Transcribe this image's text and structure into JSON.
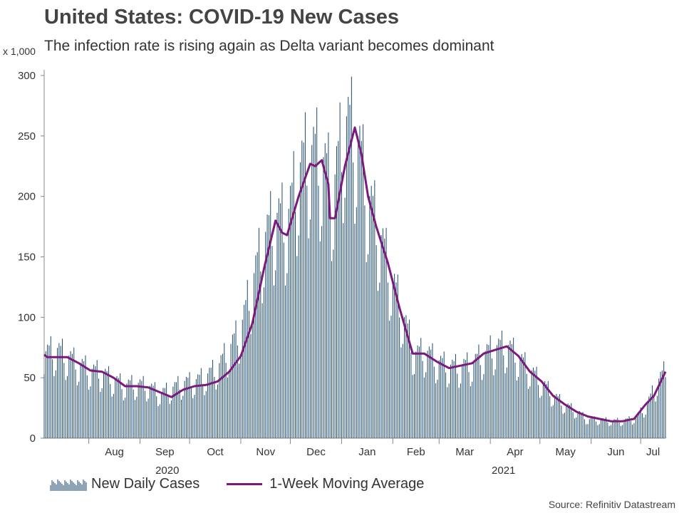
{
  "header": {
    "title": "United States: COVID-19 New Cases",
    "subtitle": "The infection rate is rising again as Delta variant becomes dominant",
    "unit": "x 1,000"
  },
  "footer": {
    "source": "Source: Refinitiv Datastream"
  },
  "colors": {
    "bars": "#1C4A6E",
    "line": "#7B1A7E",
    "axis": "#888888",
    "text": "#333333"
  },
  "chart_data": {
    "type": "bar",
    "title": "United States: COVID-19 New Cases",
    "subtitle": "The infection rate is rising again as Delta variant becomes dominant",
    "ylabel": "x 1,000",
    "ylim": [
      0,
      300
    ],
    "yticks": [
      0,
      50,
      100,
      150,
      200,
      250,
      300
    ],
    "grid": false,
    "legend_position": "bottom-left",
    "x_start": "2020-07-05",
    "x_end": "2021-07-16",
    "month_labels": [
      "Aug",
      "Sep",
      "Oct",
      "Nov",
      "Dec",
      "Jan",
      "Feb",
      "Mar",
      "Apr",
      "May",
      "Jun",
      "Jul"
    ],
    "year_labels": [
      "2020",
      "2021"
    ],
    "series": [
      {
        "name": "New Daily Cases",
        "kind": "bar",
        "points": [
          [
            "2020-07-05",
            68
          ],
          [
            "2020-07-12",
            72
          ],
          [
            "2020-07-19",
            66
          ],
          [
            "2020-07-26",
            60
          ],
          [
            "2020-08-02",
            55
          ],
          [
            "2020-08-09",
            53
          ],
          [
            "2020-08-16",
            47
          ],
          [
            "2020-08-23",
            43
          ],
          [
            "2020-08-30",
            44
          ],
          [
            "2020-09-06",
            42
          ],
          [
            "2020-09-13",
            36
          ],
          [
            "2020-09-20",
            40
          ],
          [
            "2020-09-27",
            45
          ],
          [
            "2020-10-04",
            46
          ],
          [
            "2020-10-11",
            50
          ],
          [
            "2020-10-18",
            57
          ],
          [
            "2020-10-25",
            72
          ],
          [
            "2020-11-01",
            88
          ],
          [
            "2020-11-08",
            125
          ],
          [
            "2020-11-15",
            160
          ],
          [
            "2020-11-22",
            178
          ],
          [
            "2020-11-29",
            175
          ],
          [
            "2020-12-06",
            215
          ],
          [
            "2020-12-13",
            232
          ],
          [
            "2020-12-20",
            225
          ],
          [
            "2020-12-27",
            200
          ],
          [
            "2021-01-03",
            255
          ],
          [
            "2021-01-10",
            245
          ],
          [
            "2021-01-17",
            195
          ],
          [
            "2021-01-24",
            165
          ],
          [
            "2021-01-31",
            130
          ],
          [
            "2021-02-07",
            100
          ],
          [
            "2021-02-14",
            68
          ],
          [
            "2021-02-21",
            70
          ],
          [
            "2021-02-28",
            62
          ],
          [
            "2021-03-07",
            58
          ],
          [
            "2021-03-14",
            58
          ],
          [
            "2021-03-21",
            60
          ],
          [
            "2021-03-28",
            68
          ],
          [
            "2021-04-04",
            73
          ],
          [
            "2021-04-11",
            75
          ],
          [
            "2021-04-18",
            65
          ],
          [
            "2021-04-25",
            55
          ],
          [
            "2021-05-02",
            45
          ],
          [
            "2021-05-09",
            35
          ],
          [
            "2021-05-16",
            27
          ],
          [
            "2021-05-23",
            22
          ],
          [
            "2021-05-30",
            15
          ],
          [
            "2021-06-06",
            15
          ],
          [
            "2021-06-13",
            14
          ],
          [
            "2021-06-20",
            14
          ],
          [
            "2021-06-27",
            16
          ],
          [
            "2021-07-04",
            25
          ],
          [
            "2021-07-11",
            45
          ],
          [
            "2021-07-16",
            55
          ]
        ]
      },
      {
        "name": "1-Week Moving Average",
        "kind": "line",
        "points": [
          [
            "2020-07-05",
            69
          ],
          [
            "2020-07-07",
            67
          ],
          [
            "2020-07-19",
            67
          ],
          [
            "2020-07-26",
            62
          ],
          [
            "2020-08-02",
            56
          ],
          [
            "2020-08-09",
            55
          ],
          [
            "2020-08-16",
            50
          ],
          [
            "2020-08-23",
            43
          ],
          [
            "2020-08-30",
            43
          ],
          [
            "2020-09-06",
            42
          ],
          [
            "2020-09-13",
            38
          ],
          [
            "2020-09-20",
            34
          ],
          [
            "2020-09-27",
            40
          ],
          [
            "2020-10-04",
            43
          ],
          [
            "2020-10-11",
            44
          ],
          [
            "2020-10-18",
            47
          ],
          [
            "2020-10-25",
            55
          ],
          [
            "2020-11-01",
            68
          ],
          [
            "2020-11-08",
            95
          ],
          [
            "2020-11-15",
            140
          ],
          [
            "2020-11-22",
            180
          ],
          [
            "2020-11-26",
            170
          ],
          [
            "2020-11-29",
            168
          ],
          [
            "2020-12-06",
            200
          ],
          [
            "2020-12-13",
            227
          ],
          [
            "2020-12-16",
            225
          ],
          [
            "2020-12-20",
            230
          ],
          [
            "2020-12-24",
            210
          ],
          [
            "2020-12-25",
            182
          ],
          [
            "2020-12-28",
            182
          ],
          [
            "2021-01-03",
            225
          ],
          [
            "2021-01-09",
            257
          ],
          [
            "2021-01-13",
            235
          ],
          [
            "2021-01-17",
            200
          ],
          [
            "2021-01-22",
            175
          ],
          [
            "2021-01-29",
            145
          ],
          [
            "2021-02-05",
            108
          ],
          [
            "2021-02-13",
            70
          ],
          [
            "2021-02-20",
            70
          ],
          [
            "2021-02-28",
            63
          ],
          [
            "2021-03-07",
            58
          ],
          [
            "2021-03-14",
            60
          ],
          [
            "2021-03-21",
            62
          ],
          [
            "2021-03-28",
            70
          ],
          [
            "2021-04-04",
            73
          ],
          [
            "2021-04-11",
            76
          ],
          [
            "2021-04-18",
            68
          ],
          [
            "2021-04-25",
            55
          ],
          [
            "2021-05-02",
            47
          ],
          [
            "2021-05-09",
            35
          ],
          [
            "2021-05-16",
            28
          ],
          [
            "2021-05-23",
            22
          ],
          [
            "2021-05-30",
            18
          ],
          [
            "2021-06-06",
            16
          ],
          [
            "2021-06-13",
            14
          ],
          [
            "2021-06-20",
            14
          ],
          [
            "2021-06-27",
            16
          ],
          [
            "2021-07-04",
            28
          ],
          [
            "2021-07-09",
            35
          ],
          [
            "2021-07-16",
            55
          ]
        ]
      }
    ]
  }
}
